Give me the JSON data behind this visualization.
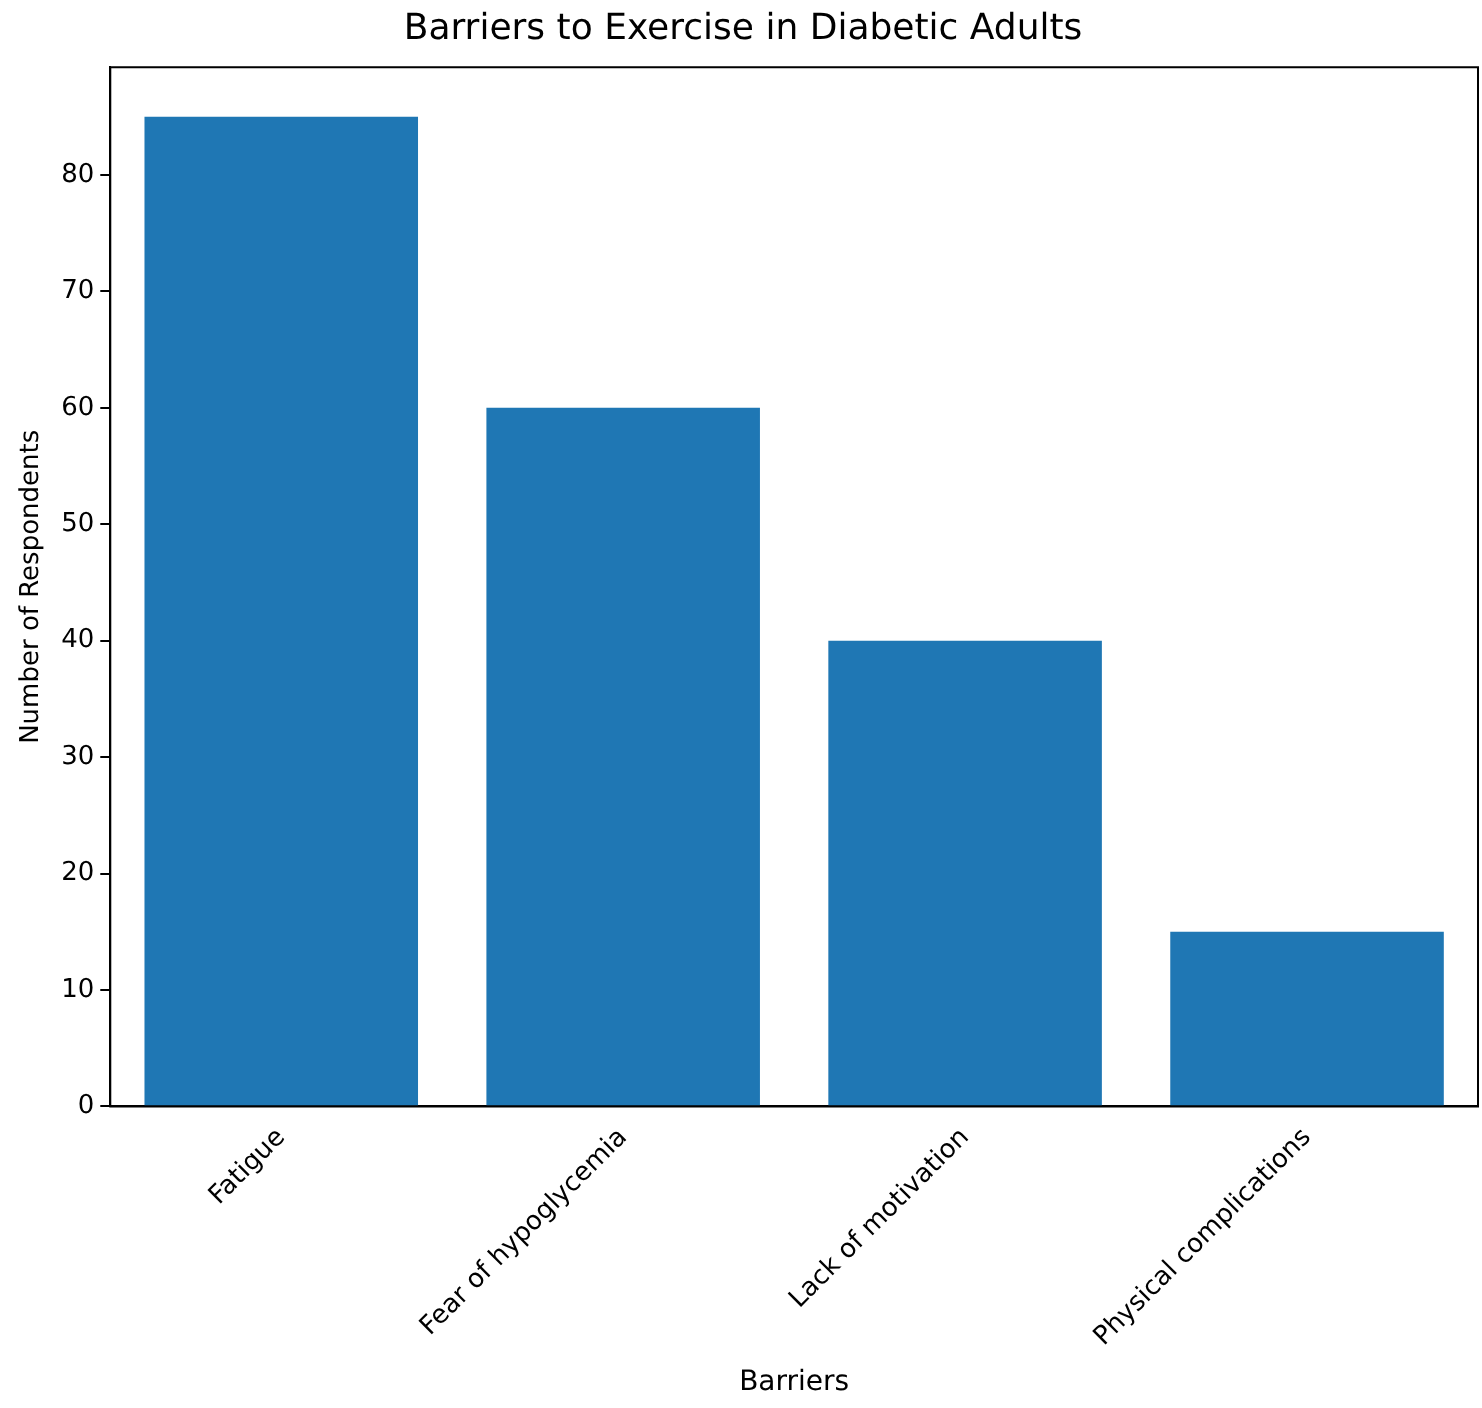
{
  "chart_data": {
    "type": "bar",
    "title": "Barriers to Exercise in Diabetic Adults",
    "xlabel": "Barriers",
    "ylabel": "Number of Respondents",
    "categories": [
      "Fatigue",
      "Fear of hypoglycemia",
      "Lack of motivation",
      "Physical complications"
    ],
    "values": [
      85,
      60,
      40,
      15
    ],
    "color": "#1f77b4",
    "ylim": [
      0,
      89.25
    ],
    "yticks": [
      0,
      10,
      20,
      30,
      40,
      50,
      60,
      70,
      80
    ],
    "grid": false,
    "legend": false
  }
}
